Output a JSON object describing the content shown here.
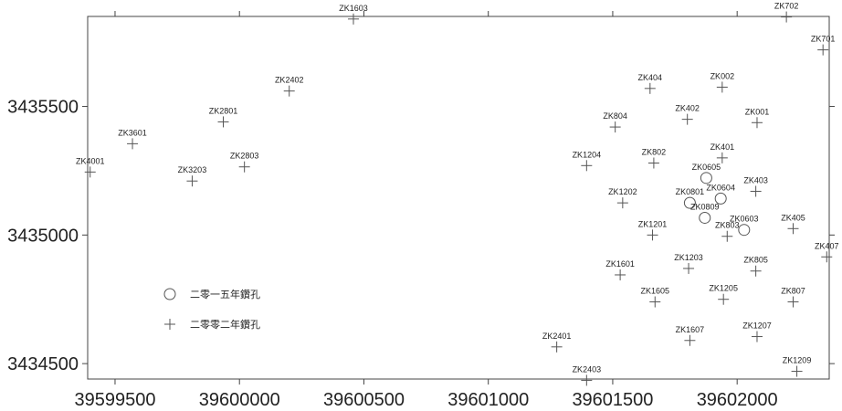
{
  "chart_data": {
    "type": "scatter",
    "title": "",
    "xlabel": "",
    "ylabel": "",
    "xlim": [
      39599390,
      39602370
    ],
    "ylim": [
      3434440,
      3435850
    ],
    "x_ticks": [
      "39599500",
      "39600000",
      "39600500",
      "39601000",
      "39601500",
      "39602000"
    ],
    "y_ticks": [
      "3434500",
      "3435000",
      "3435500"
    ],
    "grid": false,
    "legend_position": "left-middle",
    "colors": {
      "marker": "#555555",
      "axis": "#444444",
      "text": "#222222"
    },
    "series": [
      {
        "name": "二零一五年鑽孔",
        "marker": "circle",
        "points": [
          {
            "label": "ZK0605",
            "x": 39601876,
            "y": 3435222
          },
          {
            "label": "ZK0604",
            "x": 39601934,
            "y": 3435142
          },
          {
            "label": "ZK0801",
            "x": 39601810,
            "y": 3435125
          },
          {
            "label": "ZK0809",
            "x": 39601870,
            "y": 3435067
          },
          {
            "label": "ZK0603",
            "x": 39602028,
            "y": 3435020
          }
        ]
      },
      {
        "name": "二零零二年鑽孔",
        "marker": "plus",
        "points": [
          {
            "label": "ZK1603",
            "x": 39600458,
            "y": 3435840
          },
          {
            "label": "ZK702",
            "x": 39602198,
            "y": 3435848
          },
          {
            "label": "ZK701",
            "x": 39602345,
            "y": 3435720
          },
          {
            "label": "ZK2402",
            "x": 39600200,
            "y": 3435560
          },
          {
            "label": "ZK404",
            "x": 39601650,
            "y": 3435570
          },
          {
            "label": "ZK002",
            "x": 39601940,
            "y": 3435575
          },
          {
            "label": "ZK402",
            "x": 39601800,
            "y": 3435450
          },
          {
            "label": "ZK001",
            "x": 39602080,
            "y": 3435437
          },
          {
            "label": "ZK2801",
            "x": 39599935,
            "y": 3435440
          },
          {
            "label": "ZK804",
            "x": 39601510,
            "y": 3435420
          },
          {
            "label": "ZK3601",
            "x": 39599570,
            "y": 3435355
          },
          {
            "label": "ZK401",
            "x": 39601940,
            "y": 3435300
          },
          {
            "label": "ZK1204",
            "x": 39601395,
            "y": 3435270
          },
          {
            "label": "ZK802",
            "x": 39601665,
            "y": 3435280
          },
          {
            "label": "ZK2803",
            "x": 39600020,
            "y": 3435265
          },
          {
            "label": "ZK4001",
            "x": 39599400,
            "y": 3435245
          },
          {
            "label": "ZK3203",
            "x": 39599810,
            "y": 3435210
          },
          {
            "label": "ZK403",
            "x": 39602075,
            "y": 3435170
          },
          {
            "label": "ZK1202",
            "x": 39601540,
            "y": 3435125
          },
          {
            "label": "ZK405",
            "x": 39602225,
            "y": 3435025
          },
          {
            "label": "ZK1201",
            "x": 39601660,
            "y": 3435000
          },
          {
            "label": "ZK803",
            "x": 39601960,
            "y": 3434995
          },
          {
            "label": "ZK407",
            "x": 39602360,
            "y": 3434915
          },
          {
            "label": "ZK1203",
            "x": 39601805,
            "y": 3434870
          },
          {
            "label": "ZK805",
            "x": 39602075,
            "y": 3434860
          },
          {
            "label": "ZK1601",
            "x": 39601530,
            "y": 3434845
          },
          {
            "label": "ZK1205",
            "x": 39601945,
            "y": 3434750
          },
          {
            "label": "ZK1605",
            "x": 39601670,
            "y": 3434740
          },
          {
            "label": "ZK807",
            "x": 39602225,
            "y": 3434740
          },
          {
            "label": "ZK1607",
            "x": 39601810,
            "y": 3434590
          },
          {
            "label": "ZK1207",
            "x": 39602080,
            "y": 3434605
          },
          {
            "label": "ZK2401",
            "x": 39601275,
            "y": 3434565
          },
          {
            "label": "ZK2403",
            "x": 39601395,
            "y": 3434435
          },
          {
            "label": "ZK1209",
            "x": 39602240,
            "y": 3434470
          }
        ]
      }
    ]
  }
}
